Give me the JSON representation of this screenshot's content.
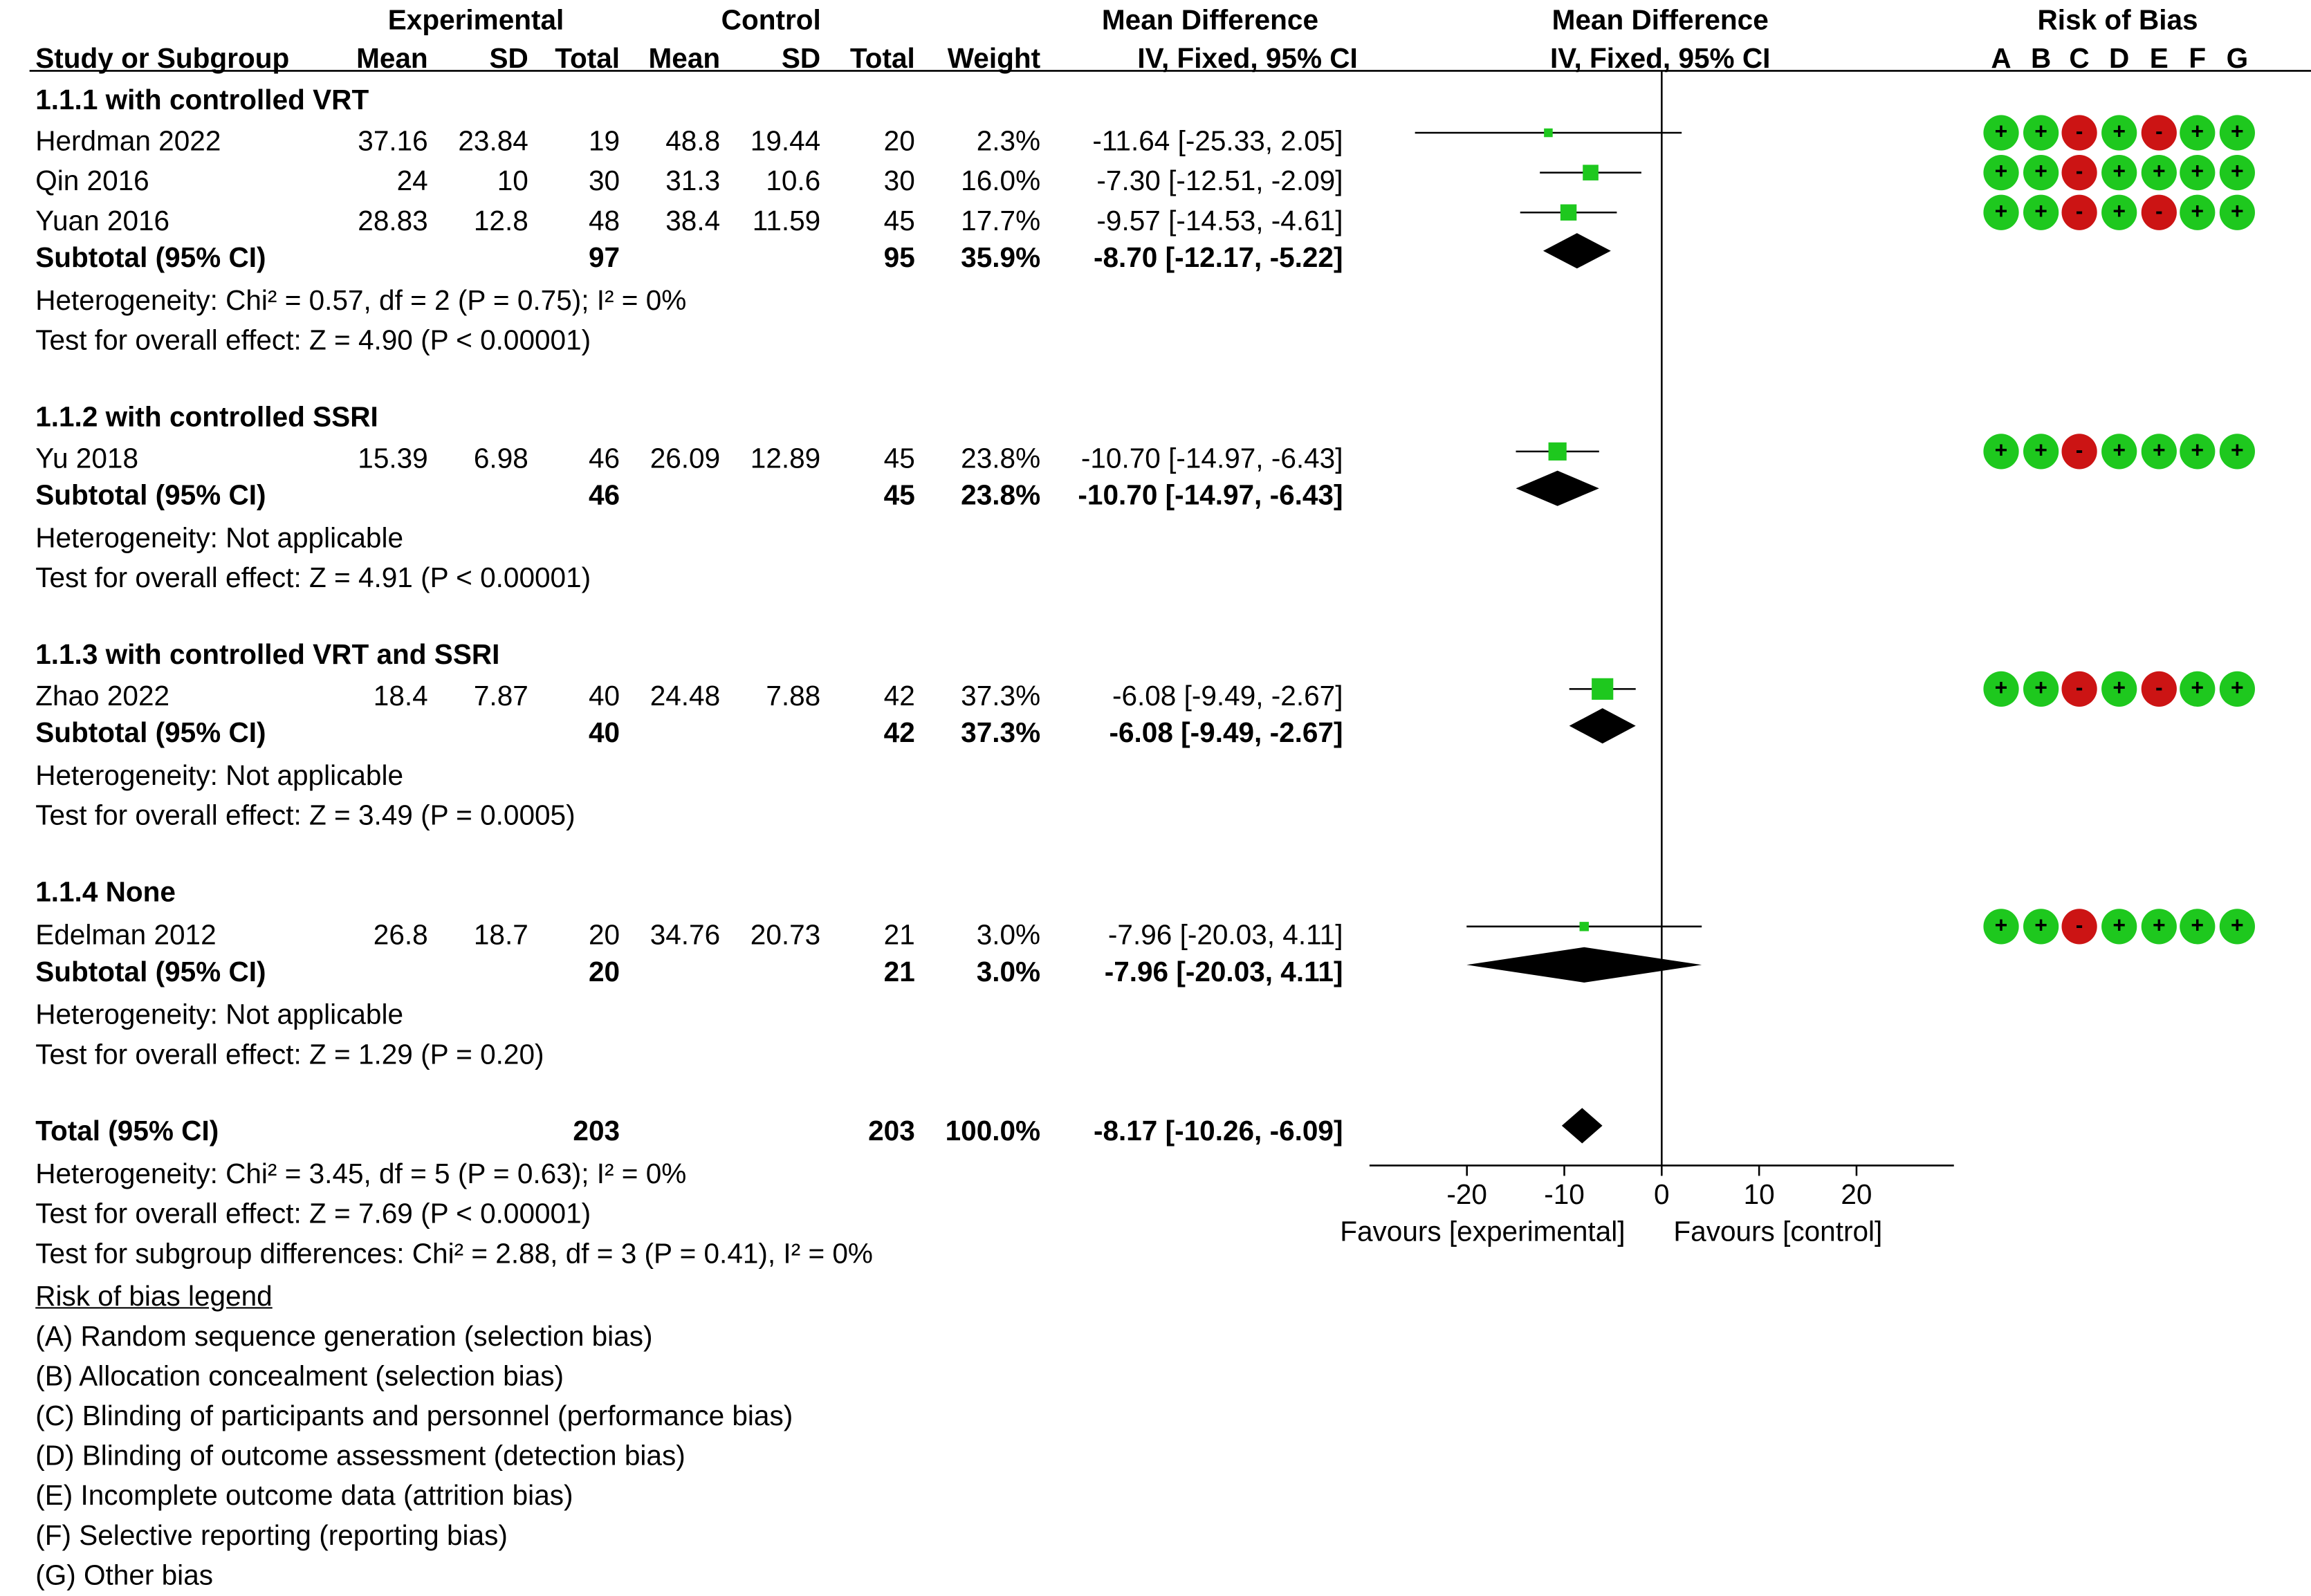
{
  "headers": {
    "experimental": "Experimental",
    "control": "Control",
    "mean_diff": "Mean Difference",
    "mean_diff_plot": "Mean Difference",
    "risk_of_bias": "Risk of Bias",
    "study": "Study or Subgroup",
    "mean": "Mean",
    "sd": "SD",
    "total": "Total",
    "weight": "Weight",
    "method": "IV, Fixed, 95% CI",
    "method_plot": "IV, Fixed, 95% CI",
    "rob_letters": [
      "A",
      "B",
      "C",
      "D",
      "E",
      "F",
      "G"
    ]
  },
  "subgroups": [
    {
      "title": "1.1.1 with controlled VRT",
      "studies": [
        {
          "name": "Herdman 2022",
          "e_mean": "37.16",
          "e_sd": "23.84",
          "e_total": "19",
          "c_mean": "48.8",
          "c_sd": "19.44",
          "c_total": "20",
          "weight": "2.3%",
          "ci": "-11.64 [-25.33, 2.05]"
        },
        {
          "name": "Qin 2016",
          "e_mean": "24",
          "e_sd": "10",
          "e_total": "30",
          "c_mean": "31.3",
          "c_sd": "10.6",
          "c_total": "30",
          "weight": "16.0%",
          "ci": "-7.30 [-12.51, -2.09]"
        },
        {
          "name": "Yuan 2016",
          "e_mean": "28.83",
          "e_sd": "12.8",
          "e_total": "48",
          "c_mean": "38.4",
          "c_sd": "11.59",
          "c_total": "45",
          "weight": "17.7%",
          "ci": "-9.57 [-14.53, -4.61]"
        }
      ],
      "subtotal": {
        "label": "Subtotal (95% CI)",
        "e_total": "97",
        "c_total": "95",
        "weight": "35.9%",
        "ci": "-8.70 [-12.17, -5.22]"
      },
      "heterogeneity": "Heterogeneity: Chi² = 0.57, df = 2 (P = 0.75); I² = 0%",
      "overall": "Test for overall effect: Z = 4.90 (P < 0.00001)"
    },
    {
      "title": "1.1.2 with controlled SSRI",
      "studies": [
        {
          "name": "Yu 2018",
          "e_mean": "15.39",
          "e_sd": "6.98",
          "e_total": "46",
          "c_mean": "26.09",
          "c_sd": "12.89",
          "c_total": "45",
          "weight": "23.8%",
          "ci": "-10.70 [-14.97, -6.43]"
        }
      ],
      "subtotal": {
        "label": "Subtotal (95% CI)",
        "e_total": "46",
        "c_total": "45",
        "weight": "23.8%",
        "ci": "-10.70 [-14.97, -6.43]"
      },
      "heterogeneity": "Heterogeneity: Not applicable",
      "overall": "Test for overall effect: Z = 4.91 (P < 0.00001)"
    },
    {
      "title": "1.1.3 with controlled VRT and SSRI",
      "studies": [
        {
          "name": "Zhao 2022",
          "e_mean": "18.4",
          "e_sd": "7.87",
          "e_total": "40",
          "c_mean": "24.48",
          "c_sd": "7.88",
          "c_total": "42",
          "weight": "37.3%",
          "ci": "-6.08 [-9.49, -2.67]"
        }
      ],
      "subtotal": {
        "label": "Subtotal (95% CI)",
        "e_total": "40",
        "c_total": "42",
        "weight": "37.3%",
        "ci": "-6.08 [-9.49, -2.67]"
      },
      "heterogeneity": "Heterogeneity: Not applicable",
      "overall": "Test for overall effect: Z = 3.49 (P = 0.0005)"
    },
    {
      "title": "1.1.4 None",
      "studies": [
        {
          "name": "Edelman 2012",
          "e_mean": "26.8",
          "e_sd": "18.7",
          "e_total": "20",
          "c_mean": "34.76",
          "c_sd": "20.73",
          "c_total": "21",
          "weight": "3.0%",
          "ci": "-7.96 [-20.03, 4.11]"
        }
      ],
      "subtotal": {
        "label": "Subtotal (95% CI)",
        "e_total": "20",
        "c_total": "21",
        "weight": "3.0%",
        "ci": "-7.96 [-20.03, 4.11]"
      },
      "heterogeneity": "Heterogeneity: Not applicable",
      "overall": "Test for overall effect: Z = 1.29 (P = 0.20)"
    }
  ],
  "total": {
    "label": "Total (95% CI)",
    "e_total": "203",
    "c_total": "203",
    "weight": "100.0%",
    "ci": "-8.17 [-10.26, -6.09]",
    "heterogeneity": "Heterogeneity: Chi² = 3.45, df = 5 (P = 0.63); I² = 0%",
    "overall": "Test for overall effect: Z = 7.69 (P < 0.00001)",
    "subgroup_diff": "Test for subgroup differences: Chi² = 2.88, df = 3 (P = 0.41), I² = 0%"
  },
  "legend": {
    "title": "Risk of bias legend",
    "items": [
      "(A) Random sequence generation (selection bias)",
      "(B) Allocation concealment (selection bias)",
      "(C) Blinding of participants and personnel (performance bias)",
      "(D) Blinding of outcome assessment (detection bias)",
      "(E) Incomplete outcome data (attrition bias)",
      "(F) Selective reporting (reporting bias)",
      "(G) Other bias"
    ]
  },
  "colors": {
    "low_risk": "#1ec81e",
    "high_risk": "#cc1414",
    "marker": "#1ec81e",
    "diamond": "#000000"
  },
  "chart_data": {
    "type": "forest",
    "xlim": [
      -30,
      30
    ],
    "xticks": [
      -20,
      -10,
      0,
      10,
      20
    ],
    "xtick_labels": [
      "-20",
      "-10",
      "0",
      "10",
      "20"
    ],
    "xlabel_left": "Favours [experimental]",
    "xlabel_right": "Favours [control]",
    "studies": [
      {
        "name": "Herdman 2022",
        "md": -11.64,
        "lo": -25.33,
        "hi": 2.05,
        "weight": 2.3,
        "rob": [
          "+",
          "+",
          "-",
          "+",
          "-",
          "+",
          "+"
        ]
      },
      {
        "name": "Qin 2016",
        "md": -7.3,
        "lo": -12.51,
        "hi": -2.09,
        "weight": 16.0,
        "rob": [
          "+",
          "+",
          "-",
          "+",
          "+",
          "+",
          "+"
        ]
      },
      {
        "name": "Yuan 2016",
        "md": -9.57,
        "lo": -14.53,
        "hi": -4.61,
        "weight": 17.7,
        "rob": [
          "+",
          "+",
          "-",
          "+",
          "-",
          "+",
          "+"
        ]
      },
      {
        "name": "Yu 2018",
        "md": -10.7,
        "lo": -14.97,
        "hi": -6.43,
        "weight": 23.8,
        "rob": [
          "+",
          "+",
          "-",
          "+",
          "+",
          "+",
          "+"
        ]
      },
      {
        "name": "Zhao 2022",
        "md": -6.08,
        "lo": -9.49,
        "hi": -2.67,
        "weight": 37.3,
        "rob": [
          "+",
          "+",
          "-",
          "+",
          "-",
          "+",
          "+"
        ]
      },
      {
        "name": "Edelman 2012",
        "md": -7.96,
        "lo": -20.03,
        "hi": 4.11,
        "weight": 3.0,
        "rob": [
          "+",
          "+",
          "-",
          "+",
          "+",
          "+",
          "+"
        ]
      }
    ],
    "pooled": [
      {
        "name": "Subtotal 1.1.1",
        "md": -8.7,
        "lo": -12.17,
        "hi": -5.22
      },
      {
        "name": "Subtotal 1.1.2",
        "md": -10.7,
        "lo": -14.97,
        "hi": -6.43
      },
      {
        "name": "Subtotal 1.1.3",
        "md": -6.08,
        "lo": -9.49,
        "hi": -2.67
      },
      {
        "name": "Subtotal 1.1.4",
        "md": -7.96,
        "lo": -20.03,
        "hi": 4.11
      },
      {
        "name": "Total",
        "md": -8.17,
        "lo": -10.26,
        "hi": -6.09
      }
    ]
  }
}
